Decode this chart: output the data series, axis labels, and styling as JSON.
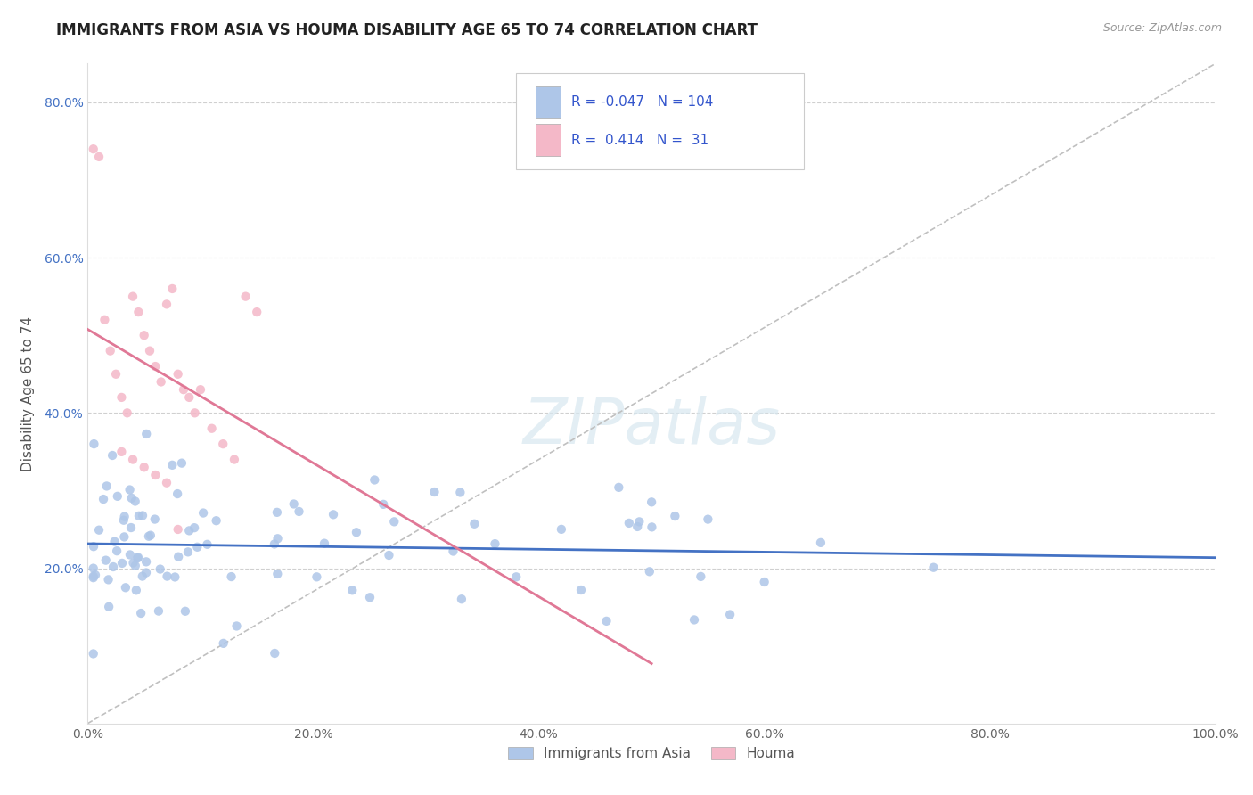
{
  "title": "IMMIGRANTS FROM ASIA VS HOUMA DISABILITY AGE 65 TO 74 CORRELATION CHART",
  "source": "Source: ZipAtlas.com",
  "ylabel": "Disability Age 65 to 74",
  "legend_blue_R": "-0.047",
  "legend_blue_N": "104",
  "legend_pink_R": "0.414",
  "legend_pink_N": "31",
  "xtick_labels": [
    "0.0%",
    "20.0%",
    "40.0%",
    "60.0%",
    "80.0%",
    "100.0%"
  ],
  "ytick_labels": [
    "20.0%",
    "40.0%",
    "60.0%",
    "80.0%"
  ],
  "blue_color": "#aec6e8",
  "blue_line_color": "#4472c4",
  "pink_color": "#f4b8c8",
  "pink_line_color": "#e07896",
  "trendline_dashed_color": "#c0c0c0",
  "background_color": "#ffffff",
  "grid_color": "#d0d0d0",
  "title_fontsize": 12,
  "axis_label_fontsize": 11,
  "tick_fontsize": 10,
  "legend_fontsize": 11,
  "legend_text_color": "#3355cc"
}
